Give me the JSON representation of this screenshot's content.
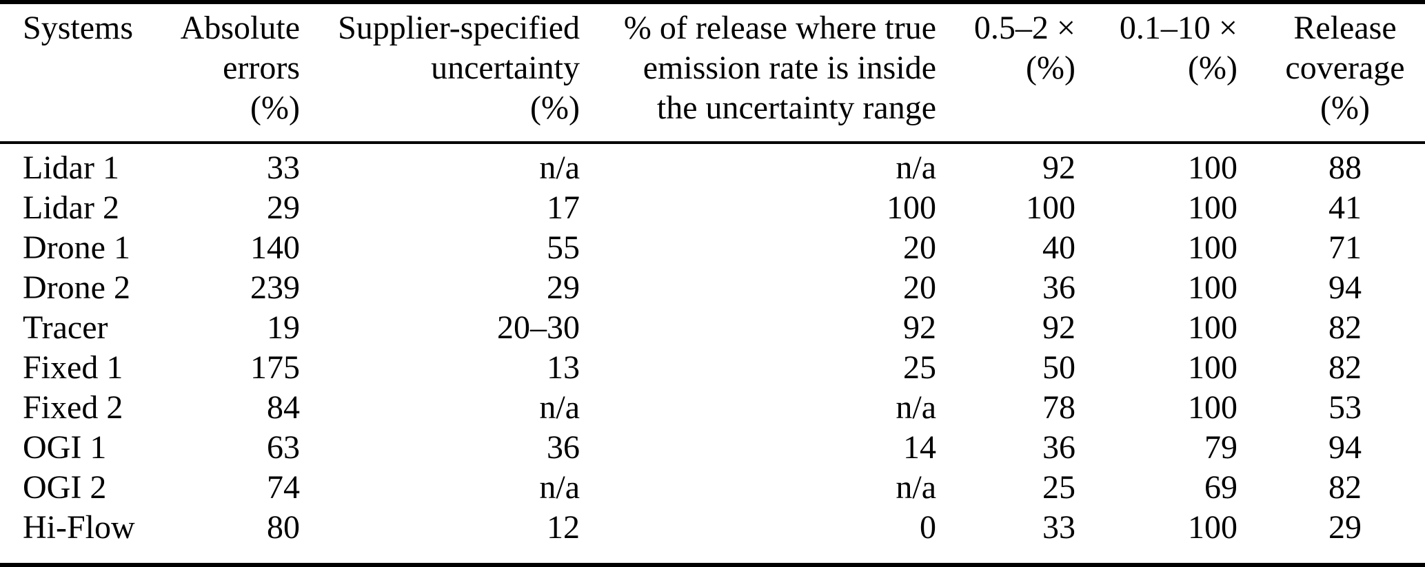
{
  "table": {
    "columns": [
      {
        "id": "systems",
        "align": "left",
        "header_lines": [
          "Systems"
        ]
      },
      {
        "id": "absolute_errors",
        "align": "right",
        "header_lines": [
          "Absolute",
          "errors",
          "(%)"
        ]
      },
      {
        "id": "supplier_uncertainty",
        "align": "right",
        "header_lines": [
          "Supplier-specified",
          "uncertainty",
          "(%)"
        ]
      },
      {
        "id": "inside_range",
        "align": "right",
        "header_lines": [
          "% of release where true",
          "emission rate is inside",
          "the uncertainty range"
        ]
      },
      {
        "id": "factor_05_2",
        "align": "right",
        "header_lines": [
          "0.5–2 ×",
          "(%)"
        ]
      },
      {
        "id": "factor_01_10",
        "align": "right",
        "header_lines": [
          "0.1–10 ×",
          "(%)"
        ]
      },
      {
        "id": "release_coverage",
        "align": "center",
        "header_lines": [
          "Release",
          "coverage",
          "(%)"
        ]
      }
    ],
    "rows": [
      [
        "Lidar 1",
        "33",
        "n/a",
        "n/a",
        "92",
        "100",
        "88"
      ],
      [
        "Lidar 2",
        "29",
        "17",
        "100",
        "100",
        "100",
        "41"
      ],
      [
        "Drone 1",
        "140",
        "55",
        "20",
        "40",
        "100",
        "71"
      ],
      [
        "Drone 2",
        "239",
        "29",
        "20",
        "36",
        "100",
        "94"
      ],
      [
        "Tracer",
        "19",
        "20–30",
        "92",
        "92",
        "100",
        "82"
      ],
      [
        "Fixed 1",
        "175",
        "13",
        "25",
        "50",
        "100",
        "82"
      ],
      [
        "Fixed 2",
        "84",
        "n/a",
        "n/a",
        "78",
        "100",
        "53"
      ],
      [
        "OGI 1",
        "63",
        "36",
        "14",
        "36",
        "79",
        "94"
      ],
      [
        "OGI 2",
        "74",
        "n/a",
        "n/a",
        "25",
        "69",
        "82"
      ],
      [
        "Hi-Flow",
        "80",
        "12",
        "0",
        "33",
        "100",
        "29"
      ]
    ]
  }
}
